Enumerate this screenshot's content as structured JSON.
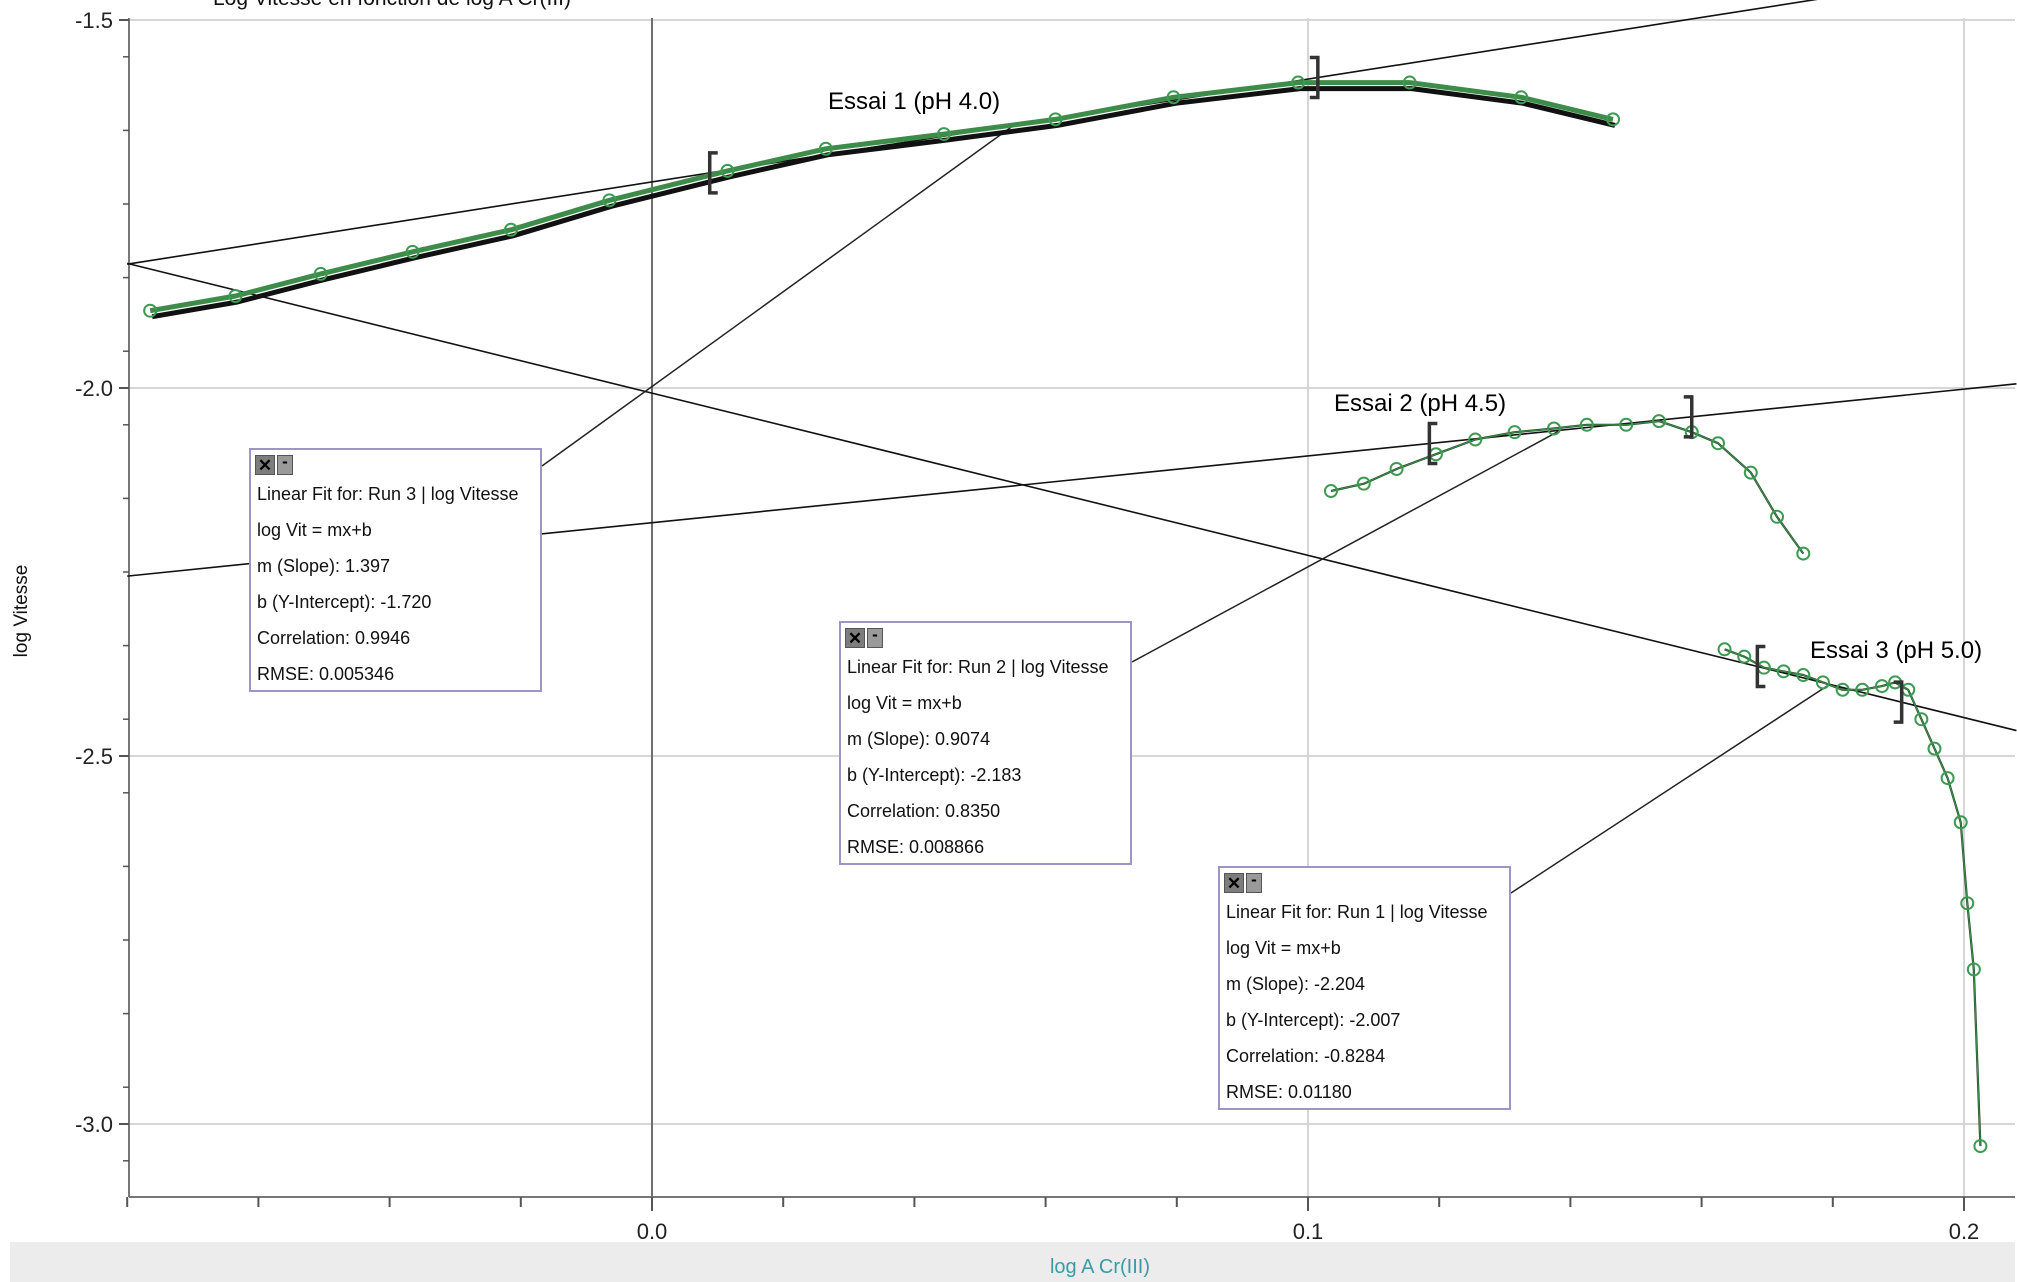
{
  "chart_data": {
    "type": "scatter",
    "title": "Log Vitesse  en fonction de log A Cr(III)",
    "xlabel": "log A Cr(III)",
    "ylabel": "log Vitesse",
    "xlim": [
      -0.08,
      0.208
    ],
    "ylim": [
      -3.1,
      -1.5
    ],
    "x_ticks": [
      0.0,
      0.1,
      0.2
    ],
    "x_tick_labels": [
      "0.0",
      "0.1",
      "0.2"
    ],
    "y_ticks": [
      -1.5,
      -2.0,
      -2.5,
      -3.0
    ],
    "y_tick_labels": [
      "-1.5",
      "-2.0",
      "-2.5",
      "-3.0"
    ],
    "grid": true,
    "series": [
      {
        "name": "Essai 1 (pH 4.0)",
        "annotation": "Essai 1 (pH 4.0)",
        "color": "#3d8c4a",
        "x": [
          -0.0765,
          -0.0635,
          -0.0505,
          -0.0365,
          -0.0215,
          -0.0065,
          0.0115,
          0.0265,
          0.0445,
          0.0615,
          0.0795,
          0.0985,
          0.1155,
          0.1325,
          0.1465
        ],
        "y": [
          -1.895,
          -1.875,
          -1.845,
          -1.815,
          -1.785,
          -1.745,
          -1.705,
          -1.675,
          -1.655,
          -1.635,
          -1.605,
          -1.585,
          -1.585,
          -1.605,
          -1.635
        ],
        "fit_range": [
          0.0088,
          0.1015
        ],
        "fit": {
          "title": "Linear Fit for: Run 3 | log Vitesse",
          "equation": "log Vit = mx+b",
          "slope": "m (Slope): 1.397",
          "intercept": "b (Y-Intercept): -1.720",
          "correlation": "Correlation: 0.9946",
          "rmse": "RMSE: 0.005346",
          "m": 1.397,
          "b": -1.72
        }
      },
      {
        "name": "Essai 2 (pH 4.5)",
        "annotation": "Essai 2 (pH 4.5)",
        "color": "#3d8c4a",
        "x": [
          0.1035,
          0.1085,
          0.1135,
          0.1195,
          0.1255,
          0.1315,
          0.1375,
          0.1425,
          0.1485,
          0.1535,
          0.1585,
          0.1625,
          0.1675,
          0.1715,
          0.1755
        ],
        "y": [
          -2.14,
          -2.13,
          -2.11,
          -2.09,
          -2.07,
          -2.06,
          -2.055,
          -2.05,
          -2.05,
          -2.045,
          -2.06,
          -2.075,
          -2.115,
          -2.175,
          -2.225
        ],
        "fit_range": [
          0.1185,
          0.1585
        ],
        "fit": {
          "title": "Linear Fit for: Run 2 | log Vitesse",
          "equation": "log Vit = mx+b",
          "slope": "m (Slope): 0.9074",
          "intercept": "b (Y-Intercept): -2.183",
          "correlation": "Correlation: 0.8350",
          "rmse": "RMSE: 0.008866",
          "m": 0.9074,
          "b": -2.183
        }
      },
      {
        "name": "Essai 3 (pH 5.0)",
        "annotation": "Essai 3 (pH 5.0)",
        "color": "#3d8c4a",
        "x": [
          0.1635,
          0.1665,
          0.1695,
          0.1725,
          0.1755,
          0.1785,
          0.1815,
          0.1845,
          0.1875,
          0.1895,
          0.1915,
          0.1935,
          0.1955,
          0.1975,
          0.1995,
          0.2005,
          0.2015,
          0.2025
        ],
        "y": [
          -2.355,
          -2.365,
          -2.38,
          -2.385,
          -2.39,
          -2.4,
          -2.41,
          -2.41,
          -2.405,
          -2.4,
          -2.41,
          -2.45,
          -2.49,
          -2.53,
          -2.59,
          -2.7,
          -2.79,
          -3.03
        ],
        "fit_range": [
          0.1685,
          0.1905
        ],
        "fit": {
          "title": "Linear Fit for: Run 1 | log Vitesse",
          "equation": "log Vit = mx+b",
          "slope": "m (Slope): -2.204",
          "intercept": "b (Y-Intercept): -2.007",
          "correlation": "Correlation: -0.8284",
          "rmse": "RMSE: 0.01180",
          "m": -2.204,
          "b": -2.007
        }
      }
    ]
  }
}
